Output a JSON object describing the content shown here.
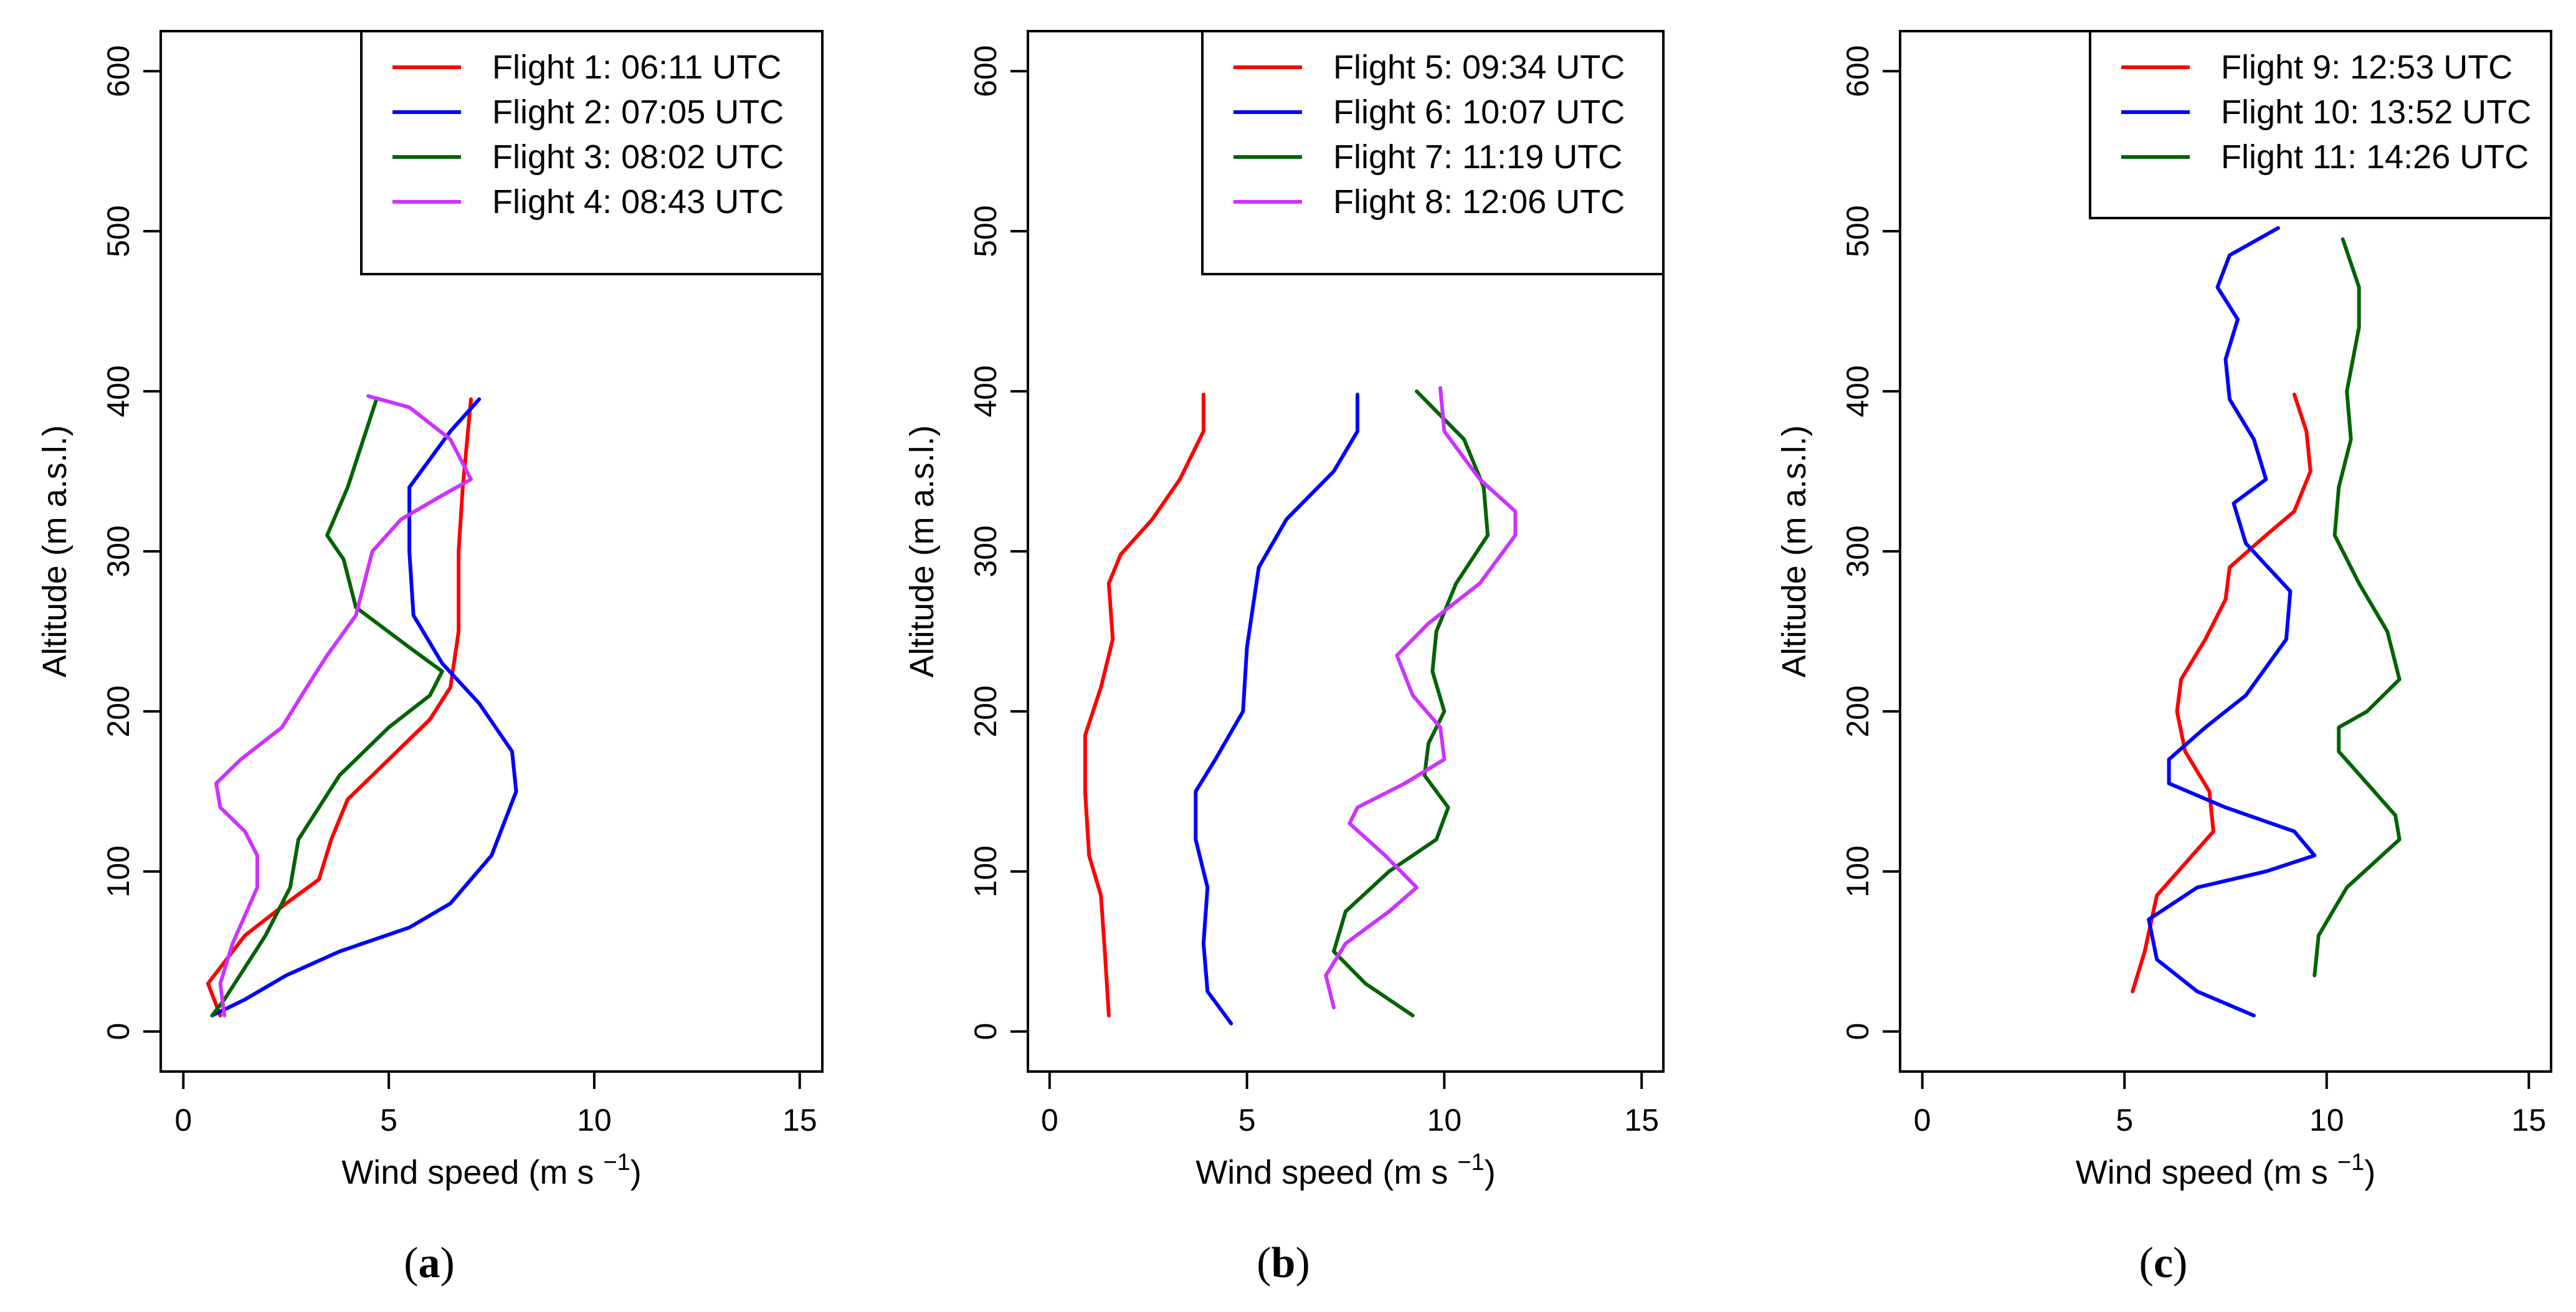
{
  "chart_data": [
    {
      "type": "line",
      "panel_label": "a",
      "xlabel": "Wind speed (m s",
      "xlabel_superscript": "−1",
      "xlabel_suffix": ")",
      "ylabel": "Altitude (m a.s.l.)",
      "xlim": [
        0,
        15
      ],
      "ylim": [
        0,
        600
      ],
      "xticks": [
        "0",
        "5",
        "10",
        "15"
      ],
      "yticks": [
        "0",
        "100",
        "200",
        "300",
        "400",
        "500",
        "600"
      ],
      "grid": false,
      "legend_position": "top-right",
      "series": [
        {
          "name": "Flight 1: 06:11 UTC",
          "color": "#ff0000",
          "points": [
            [
              0.9,
              10
            ],
            [
              0.6,
              30
            ],
            [
              1.5,
              60
            ],
            [
              2.5,
              80
            ],
            [
              3.3,
              95
            ],
            [
              3.6,
              120
            ],
            [
              4.0,
              145
            ],
            [
              5.2,
              175
            ],
            [
              6.0,
              195
            ],
            [
              6.5,
              215
            ],
            [
              6.7,
              250
            ],
            [
              6.7,
              300
            ],
            [
              6.8,
              340
            ],
            [
              7.0,
              395
            ]
          ]
        },
        {
          "name": "Flight 2: 07:05 UTC",
          "color": "#0000ff",
          "points": [
            [
              0.7,
              10
            ],
            [
              1.5,
              20
            ],
            [
              2.5,
              35
            ],
            [
              3.8,
              50
            ],
            [
              5.5,
              65
            ],
            [
              6.5,
              80
            ],
            [
              7.5,
              110
            ],
            [
              8.1,
              150
            ],
            [
              8.0,
              175
            ],
            [
              7.2,
              205
            ],
            [
              6.3,
              230
            ],
            [
              5.6,
              260
            ],
            [
              5.5,
              300
            ],
            [
              5.5,
              340
            ],
            [
              6.5,
              375
            ],
            [
              7.2,
              395
            ]
          ]
        },
        {
          "name": "Flight 3: 08:02 UTC",
          "color": "#006400",
          "points": [
            [
              0.7,
              10
            ],
            [
              1.0,
              20
            ],
            [
              1.5,
              40
            ],
            [
              2.0,
              60
            ],
            [
              2.6,
              90
            ],
            [
              2.8,
              120
            ],
            [
              3.8,
              160
            ],
            [
              5.0,
              190
            ],
            [
              6.0,
              210
            ],
            [
              6.3,
              225
            ],
            [
              5.5,
              240
            ],
            [
              4.2,
              265
            ],
            [
              3.9,
              295
            ],
            [
              3.5,
              310
            ],
            [
              4.0,
              340
            ],
            [
              4.7,
              395
            ]
          ]
        },
        {
          "name": "Flight 4: 08:43 UTC",
          "color": "#cc33ff",
          "points": [
            [
              1.0,
              10
            ],
            [
              0.9,
              30
            ],
            [
              1.2,
              55
            ],
            [
              1.8,
              90
            ],
            [
              1.8,
              110
            ],
            [
              1.5,
              125
            ],
            [
              0.9,
              140
            ],
            [
              0.8,
              155
            ],
            [
              1.4,
              170
            ],
            [
              2.4,
              190
            ],
            [
              3.0,
              215
            ],
            [
              3.5,
              235
            ],
            [
              4.2,
              260
            ],
            [
              4.6,
              300
            ],
            [
              5.3,
              320
            ],
            [
              6.3,
              335
            ],
            [
              7.0,
              345
            ],
            [
              6.5,
              370
            ],
            [
              5.5,
              390
            ],
            [
              4.5,
              397
            ]
          ]
        }
      ]
    },
    {
      "type": "line",
      "panel_label": "b",
      "xlabel": "Wind speed (m s",
      "xlabel_superscript": "−1",
      "xlabel_suffix": ")",
      "ylabel": "Altitude (m a.s.l.)",
      "xlim": [
        0,
        15
      ],
      "ylim": [
        0,
        600
      ],
      "xticks": [
        "0",
        "5",
        "10",
        "15"
      ],
      "yticks": [
        "0",
        "100",
        "200",
        "300",
        "400",
        "500",
        "600"
      ],
      "grid": false,
      "legend_position": "top-right",
      "series": [
        {
          "name": "Flight 5: 09:34 UTC",
          "color": "#ff0000",
          "points": [
            [
              1.5,
              10
            ],
            [
              1.4,
              50
            ],
            [
              1.3,
              85
            ],
            [
              1.0,
              110
            ],
            [
              0.9,
              150
            ],
            [
              0.9,
              185
            ],
            [
              1.3,
              215
            ],
            [
              1.6,
              245
            ],
            [
              1.5,
              280
            ],
            [
              1.8,
              298
            ],
            [
              2.6,
              320
            ],
            [
              3.3,
              345
            ],
            [
              3.9,
              375
            ],
            [
              3.9,
              398
            ]
          ]
        },
        {
          "name": "Flight 6: 10:07 UTC",
          "color": "#0000ff",
          "points": [
            [
              4.6,
              5
            ],
            [
              4.0,
              25
            ],
            [
              3.9,
              55
            ],
            [
              4.0,
              90
            ],
            [
              3.7,
              120
            ],
            [
              3.7,
              150
            ],
            [
              4.2,
              170
            ],
            [
              4.9,
              200
            ],
            [
              5.0,
              240
            ],
            [
              5.3,
              290
            ],
            [
              6.0,
              320
            ],
            [
              7.2,
              350
            ],
            [
              7.8,
              375
            ],
            [
              7.8,
              398
            ]
          ]
        },
        {
          "name": "Flight 7: 11:19 UTC",
          "color": "#006400",
          "points": [
            [
              9.2,
              10
            ],
            [
              8.0,
              30
            ],
            [
              7.2,
              50
            ],
            [
              7.5,
              75
            ],
            [
              8.6,
              100
            ],
            [
              9.8,
              120
            ],
            [
              10.1,
              140
            ],
            [
              9.5,
              160
            ],
            [
              9.6,
              180
            ],
            [
              10.0,
              200
            ],
            [
              9.7,
              225
            ],
            [
              9.8,
              250
            ],
            [
              10.3,
              280
            ],
            [
              11.1,
              310
            ],
            [
              11.0,
              340
            ],
            [
              10.5,
              370
            ],
            [
              9.3,
              400
            ]
          ]
        },
        {
          "name": "Flight 8: 12:06 UTC",
          "color": "#cc33ff",
          "points": [
            [
              7.2,
              15
            ],
            [
              7.0,
              35
            ],
            [
              7.5,
              55
            ],
            [
              8.6,
              75
            ],
            [
              9.3,
              90
            ],
            [
              8.5,
              110
            ],
            [
              7.6,
              130
            ],
            [
              7.8,
              140
            ],
            [
              9.0,
              155
            ],
            [
              10.0,
              170
            ],
            [
              9.9,
              190
            ],
            [
              9.2,
              210
            ],
            [
              8.8,
              235
            ],
            [
              9.6,
              255
            ],
            [
              10.9,
              280
            ],
            [
              11.8,
              310
            ],
            [
              11.8,
              325
            ],
            [
              10.9,
              345
            ],
            [
              10.0,
              375
            ],
            [
              9.9,
              402
            ]
          ]
        }
      ]
    },
    {
      "type": "line",
      "panel_label": "c",
      "xlabel": "Wind speed (m s",
      "xlabel_superscript": "−1",
      "xlabel_suffix": ")",
      "ylabel": "Altitude (m a.s.l.)",
      "xlim": [
        0,
        15
      ],
      "ylim": [
        0,
        600
      ],
      "xticks": [
        "0",
        "5",
        "10",
        "15"
      ],
      "yticks": [
        "0",
        "100",
        "200",
        "300",
        "400",
        "500",
        "600"
      ],
      "grid": false,
      "legend_position": "top-right",
      "series": [
        {
          "name": "Flight 9: 12:53 UTC",
          "color": "#ff0000",
          "points": [
            [
              5.2,
              25
            ],
            [
              5.5,
              50
            ],
            [
              5.8,
              85
            ],
            [
              6.5,
              105
            ],
            [
              7.2,
              125
            ],
            [
              7.1,
              150
            ],
            [
              6.5,
              175
            ],
            [
              6.3,
              200
            ],
            [
              6.4,
              220
            ],
            [
              7.0,
              245
            ],
            [
              7.5,
              270
            ],
            [
              7.6,
              290
            ],
            [
              8.5,
              310
            ],
            [
              9.2,
              325
            ],
            [
              9.6,
              350
            ],
            [
              9.5,
              375
            ],
            [
              9.2,
              398
            ]
          ]
        },
        {
          "name": "Flight 10: 13:52 UTC",
          "color": "#0000ff",
          "points": [
            [
              8.2,
              10
            ],
            [
              6.8,
              25
            ],
            [
              5.8,
              45
            ],
            [
              5.6,
              70
            ],
            [
              6.8,
              90
            ],
            [
              8.5,
              100
            ],
            [
              9.7,
              110
            ],
            [
              9.2,
              125
            ],
            [
              7.5,
              140
            ],
            [
              6.1,
              155
            ],
            [
              6.1,
              170
            ],
            [
              7.0,
              190
            ],
            [
              8.0,
              210
            ],
            [
              9.0,
              245
            ],
            [
              9.1,
              275
            ],
            [
              8.0,
              305
            ],
            [
              7.7,
              330
            ],
            [
              8.5,
              345
            ],
            [
              8.2,
              370
            ],
            [
              7.6,
              395
            ],
            [
              7.5,
              420
            ],
            [
              7.8,
              445
            ],
            [
              7.3,
              465
            ],
            [
              7.6,
              485
            ],
            [
              8.8,
              502
            ]
          ]
        },
        {
          "name": "Flight 11: 14:26 UTC",
          "color": "#006400",
          "points": [
            [
              9.7,
              35
            ],
            [
              9.8,
              60
            ],
            [
              10.5,
              90
            ],
            [
              11.8,
              120
            ],
            [
              11.7,
              135
            ],
            [
              11.0,
              155
            ],
            [
              10.3,
              175
            ],
            [
              10.3,
              190
            ],
            [
              11.0,
              200
            ],
            [
              11.8,
              220
            ],
            [
              11.5,
              250
            ],
            [
              10.8,
              280
            ],
            [
              10.2,
              310
            ],
            [
              10.3,
              340
            ],
            [
              10.6,
              370
            ],
            [
              10.5,
              400
            ],
            [
              10.8,
              440
            ],
            [
              10.8,
              465
            ],
            [
              10.4,
              495
            ]
          ]
        }
      ]
    }
  ]
}
